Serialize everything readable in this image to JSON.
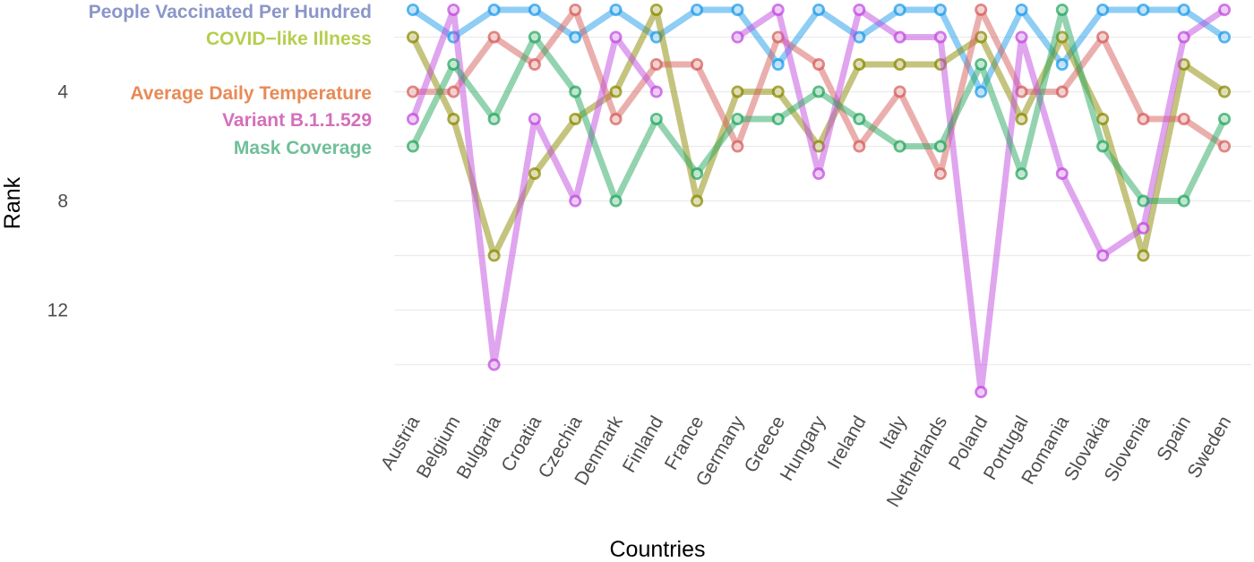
{
  "chart_data": {
    "type": "line",
    "xlabel": "Countries",
    "ylabel": "Rank",
    "ylim": [
      15,
      0.8
    ],
    "y_reversed": true,
    "y_ticks": [
      4,
      8,
      12
    ],
    "grid": true,
    "legend_position": "inside-top-left",
    "categories": [
      "Austria",
      "Belgium",
      "Bulgaria",
      "Croatia",
      "Czechia",
      "Denmark",
      "Finland",
      "France",
      "Germany",
      "Greece",
      "Hungary",
      "Ireland",
      "Italy",
      "Netherlands",
      "Poland",
      "Portugal",
      "Romania",
      "Slovakia",
      "Slovenia",
      "Spain",
      "Sweden"
    ],
    "series": [
      {
        "name": "People Vaccinated Per Hundred",
        "color": "#1e9bea",
        "values": [
          1,
          2,
          1,
          1,
          2,
          1,
          2,
          1,
          1,
          3,
          1,
          2,
          1,
          1,
          4,
          1,
          3,
          1,
          1,
          1,
          2
        ]
      },
      {
        "name": "COVID−like Illness",
        "color": "#8c8a00",
        "values": [
          2,
          5,
          10,
          7,
          5,
          4,
          1,
          8,
          4,
          4,
          6,
          3,
          3,
          3,
          2,
          5,
          2,
          5,
          10,
          3,
          4
        ]
      },
      {
        "name": "Average Daily Temperature",
        "color": "#d6605c",
        "values": [
          4,
          4,
          2,
          3,
          1,
          5,
          3,
          3,
          6,
          2,
          3,
          6,
          4,
          7,
          1,
          4,
          4,
          2,
          5,
          5,
          6
        ]
      },
      {
        "name": "Variant B.1.1.529",
        "color": "#c24be0",
        "values": [
          5,
          1,
          14,
          5,
          8,
          2,
          4,
          null,
          2,
          1,
          7,
          1,
          2,
          2,
          15,
          2,
          7,
          10,
          9,
          2,
          1
        ]
      },
      {
        "name": "Mask Coverage",
        "color": "#27a85f",
        "values": [
          6,
          3,
          5,
          2,
          4,
          8,
          5,
          7,
          5,
          5,
          4,
          5,
          6,
          6,
          3,
          7,
          1,
          6,
          8,
          8,
          5
        ]
      }
    ],
    "legend_text_colors": [
      "#8a96c8",
      "#b4cf4e",
      "#e88a56",
      "#d46fbb",
      "#6fbf98"
    ]
  }
}
